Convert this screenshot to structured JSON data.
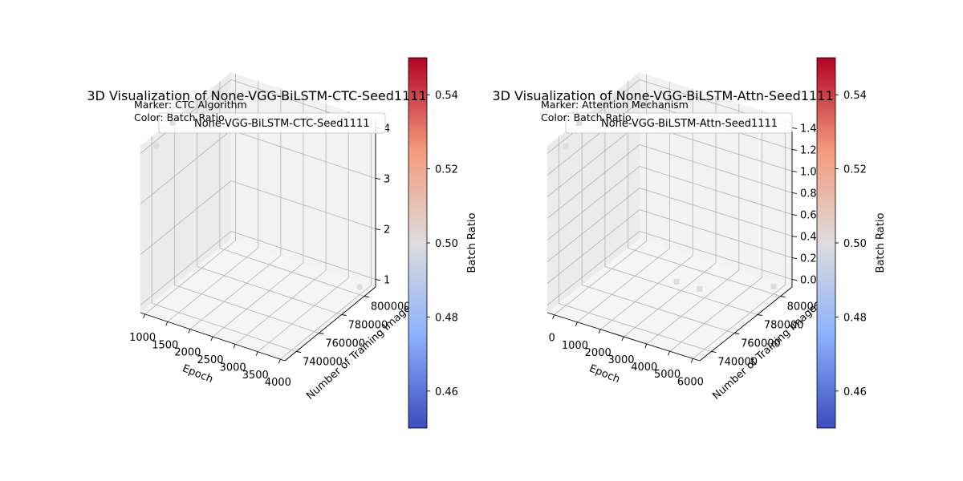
{
  "chart_data": [
    {
      "type": "scatter",
      "projection": "3d",
      "title": "3D Visualization of None-VGG-BiLSTM-CTC-Seed1111",
      "note_marker": "Marker: CTC Algorithm",
      "note_color": "Color: Batch Ratio",
      "legend": [
        "None-VGG-BiLSTM-CTC-Seed1111"
      ],
      "legend_position": "top-center",
      "marker": "circle",
      "xlabel": "Epoch",
      "ylabel": "Number of Training Images",
      "zlabel": "",
      "xlim": [
        900,
        4100
      ],
      "ylim": [
        730000,
        810000
      ],
      "zlim": [
        0.85,
        4.15
      ],
      "xticks": [
        1000,
        1500,
        2000,
        2500,
        3000,
        3500,
        4000
      ],
      "yticks": [
        740000,
        760000,
        780000,
        800000
      ],
      "zticks": [
        1,
        2,
        3,
        4
      ],
      "grid": true,
      "points": [
        {
          "x": 1000,
          "y": 740000,
          "z": 4,
          "batch_ratio": 0.5
        },
        {
          "x": 4000,
          "y": 800000,
          "z": 1,
          "batch_ratio": 0.5
        }
      ],
      "colorbar": {
        "label": "Batch Ratio",
        "colormap": "coolwarm",
        "range": [
          0.45,
          0.55
        ],
        "ticks": [
          0.46,
          0.48,
          0.5,
          0.52,
          0.54
        ]
      }
    },
    {
      "type": "scatter",
      "projection": "3d",
      "title": "3D Visualization of None-VGG-BiLSTM-Attn-Seed1111",
      "note_marker": "Marker: Attention Mechanism",
      "note_color": "Color: Batch Ratio",
      "legend": [
        "None-VGG-BiLSTM-Attn-Seed1111"
      ],
      "legend_position": "top-center",
      "marker": "square",
      "xlabel": "Epoch",
      "ylabel": "Number of Training Images",
      "zlabel": "",
      "xlim": [
        -300,
        6300
      ],
      "ylim": [
        730000,
        810000
      ],
      "zlim": [
        -0.07,
        1.47
      ],
      "xticks": [
        0,
        1000,
        2000,
        3000,
        4000,
        5000,
        6000
      ],
      "yticks": [
        740000,
        760000,
        780000,
        800000
      ],
      "zticks": [
        0.0,
        0.2,
        0.4,
        0.6,
        0.8,
        1.0,
        1.2,
        1.4
      ],
      "zticklabels": [
        "0.0",
        "0.2",
        "0.4",
        "0.6",
        "0.8",
        "1.0",
        "1.2",
        "1.4"
      ],
      "grid": true,
      "points": [
        {
          "x": 0,
          "y": 740000,
          "z": 1.4,
          "batch_ratio": 0.5
        },
        {
          "x": 2800,
          "y": 780000,
          "z": 0.0,
          "batch_ratio": 0.5
        },
        {
          "x": 3800,
          "y": 780000,
          "z": 0.0,
          "batch_ratio": 0.5
        },
        {
          "x": 6000,
          "y": 800000,
          "z": 0.0,
          "batch_ratio": 0.5
        }
      ],
      "colorbar": {
        "label": "Batch Ratio",
        "colormap": "coolwarm",
        "range": [
          0.45,
          0.55
        ],
        "ticks": [
          0.46,
          0.48,
          0.5,
          0.52,
          0.54
        ]
      }
    }
  ],
  "colors": {
    "pane_left": "#ebebeb",
    "pane_back": "#f2f2f2",
    "pane_floor": "#f5f5f5",
    "grid": "#b0b0b0",
    "point": "#dddcdc",
    "legend_border": "#cccccc",
    "colormap_stops": [
      "#3b4cc0",
      "#8db0fe",
      "#dddcdc",
      "#f49a7b",
      "#b40426"
    ]
  }
}
